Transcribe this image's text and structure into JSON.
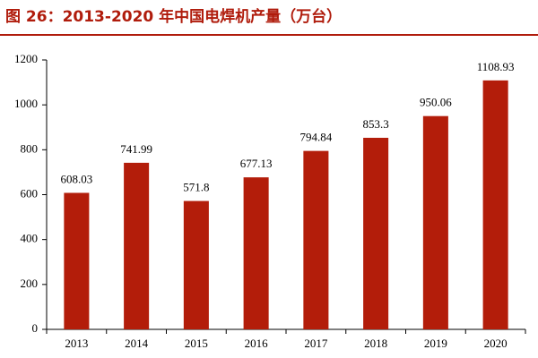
{
  "chart_data": {
    "type": "bar",
    "title": "图 26：2013-2020 年中国电焊机产量（万台）",
    "categories": [
      "2013",
      "2014",
      "2015",
      "2016",
      "2017",
      "2018",
      "2019",
      "2020"
    ],
    "values": [
      608.03,
      741.99,
      571.8,
      677.13,
      794.84,
      853.3,
      950.06,
      1108.93
    ],
    "color": "#b31d0a",
    "ylim": [
      0,
      1200
    ],
    "yticks": [
      0,
      200,
      400,
      600,
      800,
      1000,
      1200
    ],
    "grid": false
  }
}
